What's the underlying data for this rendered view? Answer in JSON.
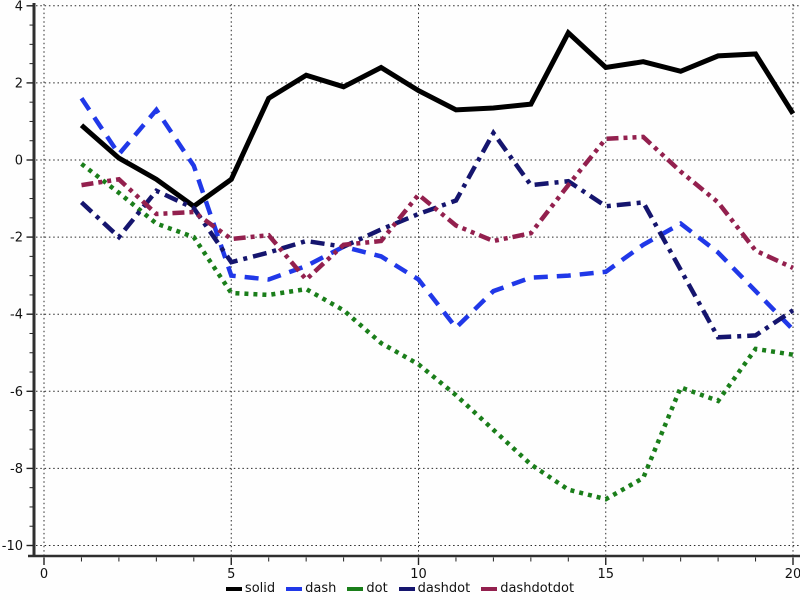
{
  "chart_data": {
    "type": "line",
    "title": "",
    "xlabel": "",
    "ylabel": "",
    "xlim": [
      0,
      20
    ],
    "ylim": [
      -10,
      4
    ],
    "x_major_ticks": [
      0,
      5,
      10,
      15,
      20
    ],
    "x_minor_step": 1,
    "y_major_ticks": [
      4,
      2,
      0,
      -2,
      -4,
      -6,
      -8,
      -10
    ],
    "y_minor_step": 0.5,
    "grid": "dotted major gridlines",
    "legend_position": "bottom-center",
    "x": [
      1,
      2,
      3,
      4,
      5,
      6,
      7,
      8,
      9,
      10,
      11,
      12,
      13,
      14,
      15,
      16,
      17,
      18,
      19,
      20
    ],
    "series": [
      {
        "name": "solid",
        "line_style": "solid",
        "color": "#000000",
        "values": [
          0.9,
          0.05,
          -0.5,
          -1.2,
          -0.5,
          1.6,
          2.2,
          1.9,
          2.4,
          1.8,
          1.3,
          1.35,
          1.45,
          3.3,
          2.4,
          2.55,
          2.3,
          2.7,
          2.75,
          1.2
        ]
      },
      {
        "name": "dash",
        "line_style": "dash",
        "color": "#2038e8",
        "values": [
          1.6,
          0.15,
          1.3,
          -0.15,
          -3.0,
          -3.1,
          -2.75,
          -2.25,
          -2.5,
          -3.1,
          -4.35,
          -3.4,
          -3.05,
          -3.0,
          -2.9,
          -2.2,
          -1.65,
          -2.4,
          -3.4,
          -4.4
        ]
      },
      {
        "name": "dot",
        "line_style": "dot",
        "color": "#1a7e1a",
        "values": [
          -0.1,
          -0.85,
          -1.65,
          -2.0,
          -3.45,
          -3.5,
          -3.35,
          -3.9,
          -4.75,
          -5.3,
          -6.1,
          -7.0,
          -7.9,
          -8.55,
          -8.8,
          -8.25,
          -5.9,
          -6.25,
          -4.9,
          -5.05
        ]
      },
      {
        "name": "dashdot",
        "line_style": "dashdot",
        "color": "#15156e",
        "values": [
          -1.1,
          -2.0,
          -0.8,
          -1.25,
          -2.65,
          -2.4,
          -2.1,
          -2.25,
          -1.8,
          -1.4,
          -1.05,
          0.7,
          -0.65,
          -0.55,
          -1.2,
          -1.1,
          -2.85,
          -4.6,
          -4.55,
          -3.9
        ]
      },
      {
        "name": "dashdotdot",
        "line_style": "dashdotdot",
        "color": "#93204e",
        "values": [
          -0.65,
          -0.5,
          -1.4,
          -1.35,
          -2.05,
          -1.95,
          -3.1,
          -2.2,
          -2.1,
          -0.9,
          -1.7,
          -2.1,
          -1.9,
          -0.65,
          0.55,
          0.6,
          -0.3,
          -1.1,
          -2.35,
          -2.8
        ]
      }
    ]
  },
  "legend": {
    "items": [
      {
        "label": "solid"
      },
      {
        "label": "dash"
      },
      {
        "label": "dot"
      },
      {
        "label": "dashdot"
      },
      {
        "label": "dashdotdot"
      }
    ]
  }
}
